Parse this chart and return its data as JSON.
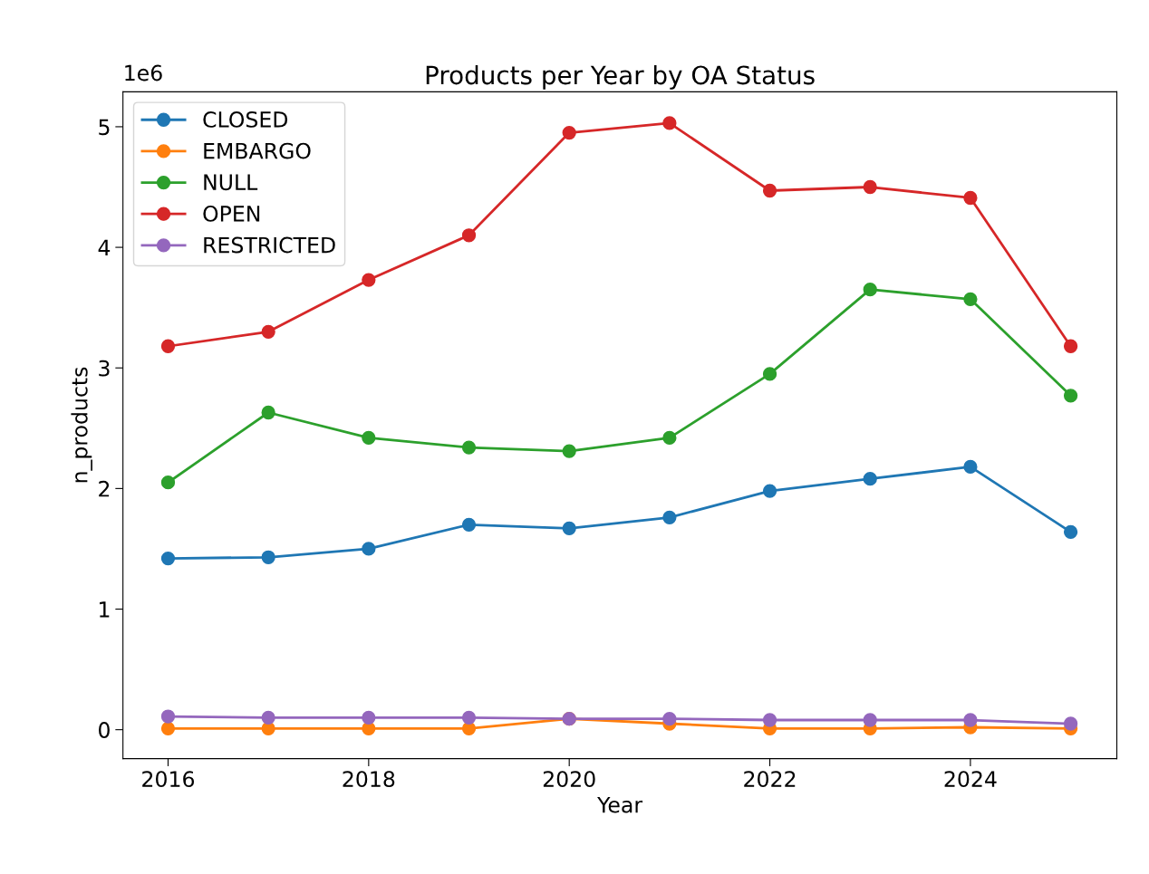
{
  "chart_data": {
    "type": "line",
    "title": "Products per Year by OA Status",
    "xlabel": "Year",
    "ylabel": "n_products",
    "x": [
      2016,
      2017,
      2018,
      2019,
      2020,
      2021,
      2022,
      2023,
      2024,
      2025
    ],
    "series": [
      {
        "name": "CLOSED",
        "color": "#1f77b4",
        "values": [
          1.42,
          1.43,
          1.5,
          1.7,
          1.67,
          1.76,
          1.98,
          2.08,
          2.18,
          1.64
        ]
      },
      {
        "name": "EMBARGO",
        "color": "#ff7f0e",
        "values": [
          0.01,
          0.01,
          0.01,
          0.01,
          0.09,
          0.05,
          0.01,
          0.01,
          0.02,
          0.01
        ]
      },
      {
        "name": "NULL",
        "color": "#2ca02c",
        "values": [
          2.05,
          2.63,
          2.42,
          2.34,
          2.31,
          2.42,
          2.95,
          3.65,
          3.57,
          2.77
        ]
      },
      {
        "name": "OPEN",
        "color": "#d62728",
        "values": [
          3.18,
          3.3,
          3.73,
          4.1,
          4.95,
          5.03,
          4.47,
          4.5,
          4.41,
          3.18
        ]
      },
      {
        "name": "RESTRICTED",
        "color": "#9467bd",
        "values": [
          0.11,
          0.1,
          0.1,
          0.1,
          0.09,
          0.09,
          0.08,
          0.08,
          0.08,
          0.05
        ]
      }
    ],
    "xlim": [
      2015.55,
      2025.46
    ],
    "xticks": [
      2016,
      2018,
      2020,
      2022,
      2024
    ],
    "ylim": [
      -0.24,
      5.29
    ],
    "yticks": [
      0,
      1,
      2,
      3,
      4,
      5
    ],
    "annotations": [
      "1e6"
    ],
    "legend": "top left",
    "marker": "circle",
    "line_style": "solid",
    "grid": false
  }
}
